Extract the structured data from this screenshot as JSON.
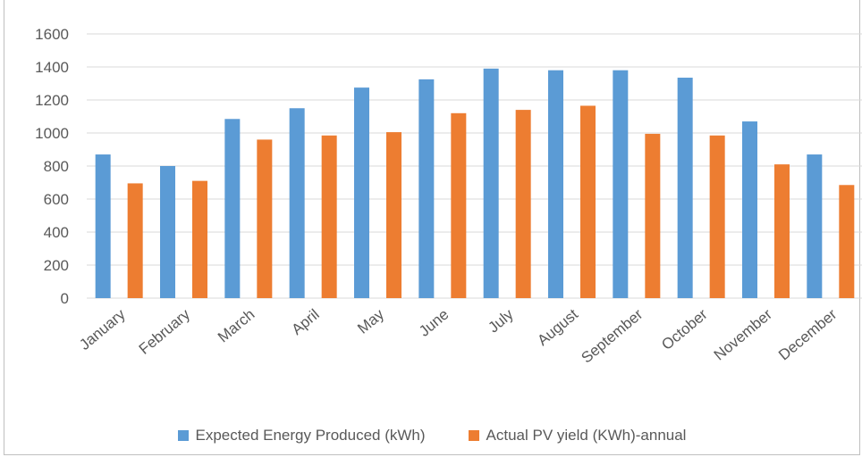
{
  "chart_data": {
    "type": "bar",
    "categories": [
      "January",
      "February",
      "March",
      "April",
      "May",
      "June",
      "July",
      "August",
      "September",
      "October",
      "November",
      "December"
    ],
    "series": [
      {
        "name": "Expected Energy Produced (kWh)",
        "color": "#5b9bd5",
        "values": [
          870,
          800,
          1085,
          1150,
          1275,
          1325,
          1390,
          1380,
          1380,
          1335,
          1070,
          870
        ]
      },
      {
        "name": "Actual PV yield (KWh)-annual",
        "color": "#ed7d31",
        "values": [
          695,
          710,
          960,
          985,
          1005,
          1120,
          1140,
          1165,
          995,
          985,
          810,
          685
        ]
      }
    ],
    "yticks": [
      "0",
      "200",
      "400",
      "600",
      "800",
      "1000",
      "1200",
      "1400",
      "1600"
    ],
    "ylim": [
      0,
      1600
    ],
    "grid": true,
    "legend_position": "bottom"
  }
}
